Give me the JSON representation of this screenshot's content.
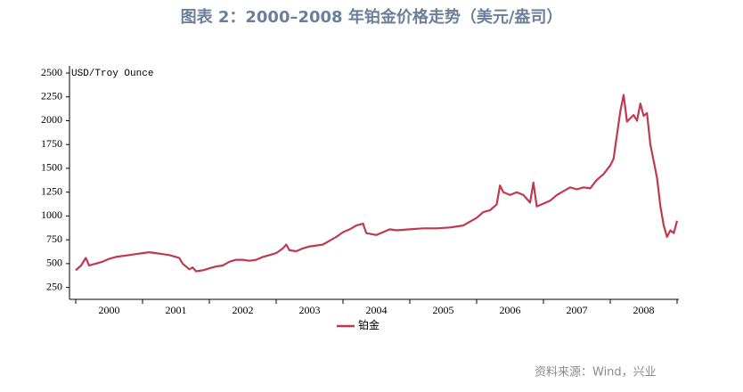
{
  "chart_data": {
    "type": "line",
    "title": "图表 2：2000–2008 年铂金价格走势（美元/盎司）",
    "y_label": "USD/Troy Ounce",
    "source": "资料来源：Wind，兴业",
    "categories": [
      "2000",
      "2001",
      "2002",
      "2003",
      "2004",
      "2005",
      "2006",
      "2007",
      "2008"
    ],
    "x": [
      2000.0,
      2000.08,
      2000.15,
      2000.2,
      2000.3,
      2000.4,
      2000.5,
      2000.6,
      2000.7,
      2000.8,
      2000.9,
      2001.0,
      2001.1,
      2001.2,
      2001.3,
      2001.4,
      2001.5,
      2001.55,
      2001.6,
      2001.7,
      2001.75,
      2001.8,
      2001.9,
      2002.0,
      2002.1,
      2002.2,
      2002.3,
      2002.4,
      2002.5,
      2002.6,
      2002.7,
      2002.8,
      2002.9,
      2003.0,
      2003.1,
      2003.15,
      2003.2,
      2003.3,
      2003.4,
      2003.5,
      2003.6,
      2003.7,
      2003.8,
      2003.9,
      2004.0,
      2004.1,
      2004.2,
      2004.3,
      2004.35,
      2004.5,
      2004.6,
      2004.7,
      2004.8,
      2005.0,
      2005.2,
      2005.4,
      2005.6,
      2005.8,
      2005.9,
      2006.0,
      2006.1,
      2006.2,
      2006.3,
      2006.35,
      2006.4,
      2006.5,
      2006.6,
      2006.7,
      2006.8,
      2006.85,
      2006.9,
      2007.0,
      2007.1,
      2007.2,
      2007.3,
      2007.4,
      2007.5,
      2007.6,
      2007.7,
      2007.8,
      2007.9,
      2008.0,
      2008.05,
      2008.1,
      2008.15,
      2008.2,
      2008.25,
      2008.35,
      2008.4,
      2008.45,
      2008.5,
      2008.55,
      2008.6,
      2008.7,
      2008.75,
      2008.8,
      2008.85,
      2008.9,
      2008.95,
      2009.0
    ],
    "series": [
      {
        "name": "铂金",
        "color": "#c0394f",
        "values": [
          430,
          480,
          560,
          480,
          500,
          520,
          550,
          570,
          580,
          590,
          600,
          610,
          620,
          610,
          600,
          590,
          570,
          560,
          500,
          440,
          460,
          420,
          430,
          450,
          470,
          480,
          520,
          540,
          540,
          530,
          540,
          570,
          590,
          610,
          660,
          700,
          640,
          630,
          660,
          680,
          690,
          700,
          740,
          780,
          830,
          860,
          900,
          920,
          820,
          800,
          830,
          860,
          850,
          860,
          870,
          870,
          880,
          900,
          940,
          980,
          1040,
          1060,
          1120,
          1320,
          1250,
          1220,
          1250,
          1220,
          1140,
          1350,
          1100,
          1130,
          1160,
          1220,
          1260,
          1300,
          1280,
          1300,
          1290,
          1380,
          1440,
          1530,
          1600,
          1850,
          2100,
          2270,
          1990,
          2060,
          2000,
          2180,
          2050,
          2080,
          1750,
          1400,
          1100,
          900,
          780,
          850,
          820,
          950
        ]
      }
    ],
    "xlim": [
      2000,
      2009
    ],
    "xticks": [
      2000,
      2001,
      2002,
      2003,
      2004,
      2005,
      2006,
      2007,
      2008,
      2009
    ],
    "ylim": [
      125,
      2500
    ],
    "yticks": [
      250,
      500,
      750,
      1000,
      1250,
      1500,
      1750,
      2000,
      2250,
      2500
    ],
    "legend": "bottom"
  }
}
